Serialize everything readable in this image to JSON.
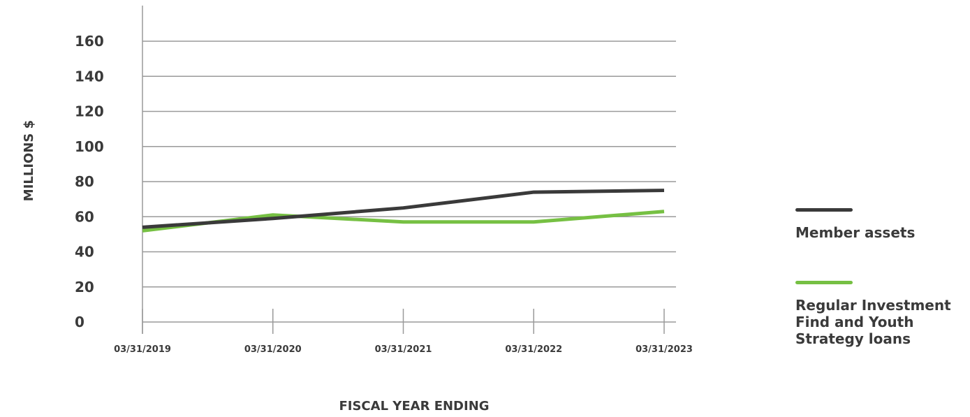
{
  "chart_data": {
    "type": "line",
    "xlabel": "FISCAL YEAR ENDING",
    "ylabel": "MILLIONS $",
    "categories": [
      "03/31/2019",
      "03/31/2020",
      "03/31/2021",
      "03/31/2022",
      "03/31/2023"
    ],
    "yticks": [
      0,
      20,
      40,
      60,
      80,
      100,
      120,
      140,
      160
    ],
    "ylim": [
      0,
      160
    ],
    "grid": true,
    "legend_position": "right",
    "series": [
      {
        "name": "Member assets",
        "color": "#3a3a3a",
        "values": [
          54,
          59,
          65,
          74,
          75
        ]
      },
      {
        "name": "Regular Investment Find and Youth Strategy loans",
        "color": "#76c043",
        "values": [
          52,
          61,
          57,
          57,
          63
        ]
      }
    ]
  }
}
